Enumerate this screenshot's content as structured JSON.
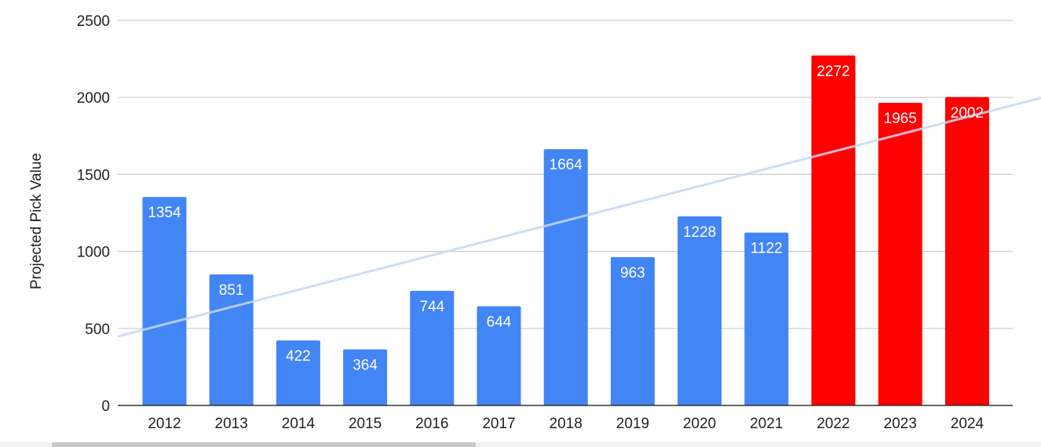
{
  "chart_data": {
    "type": "bar",
    "title": "",
    "xlabel": "",
    "ylabel": "Projected Pick Value",
    "ylim": [
      0,
      2500
    ],
    "yticks": [
      0,
      500,
      1000,
      1500,
      2000,
      2500
    ],
    "grid": true,
    "legend": "none",
    "categories": [
      "2012",
      "2013",
      "2014",
      "2015",
      "2016",
      "2017",
      "2018",
      "2019",
      "2020",
      "2021",
      "2022",
      "2023",
      "2024"
    ],
    "values": [
      1354,
      851,
      422,
      364,
      744,
      644,
      1664,
      963,
      1228,
      1122,
      2272,
      1965,
      2002
    ],
    "bar_colors": [
      "#4285f4",
      "#4285f4",
      "#4285f4",
      "#4285f4",
      "#4285f4",
      "#4285f4",
      "#4285f4",
      "#4285f4",
      "#4285f4",
      "#4285f4",
      "#ff0000",
      "#ff0000",
      "#ff0000"
    ],
    "data_labels": [
      "1354",
      "851",
      "422",
      "364",
      "744",
      "644",
      "1664",
      "963",
      "1228",
      "1122",
      "2272",
      "1965",
      "2002"
    ],
    "trendline": {
      "type": "linear",
      "color": "#c6d8f5"
    }
  },
  "colors": {
    "grid": "#cccccc",
    "axis": "#333333",
    "label_text": "#ffffff",
    "tick_text": "#222222"
  }
}
